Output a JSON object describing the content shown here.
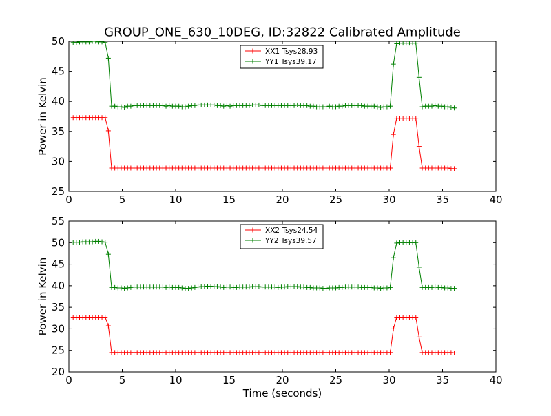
{
  "figure_title": "GROUP_ONE_630_10DEG, ID:32822 Calibrated Amplitude",
  "x_axis_label": "Time (seconds)",
  "chart_data": [
    {
      "type": "line",
      "ylabel": "Power in Kelvin",
      "xlabel": "",
      "xlim": [
        0,
        40
      ],
      "ylim": [
        25,
        50
      ],
      "xticks": [
        0,
        5,
        10,
        15,
        20,
        25,
        30,
        35,
        40
      ],
      "yticks": [
        25,
        30,
        35,
        40,
        45,
        50
      ],
      "legend_position": "top-center",
      "grid": false,
      "marker": "plus",
      "series": [
        {
          "name": "XX1 Tsys28.93",
          "color": "#ff0000",
          "x": [
            0.4,
            0.7,
            1.0,
            1.3,
            1.6,
            1.9,
            2.2,
            2.5,
            2.8,
            3.1,
            3.4,
            3.7,
            4.0,
            4.3,
            4.6,
            4.9,
            5.2,
            5.5,
            5.8,
            6.1,
            6.4,
            6.7,
            7.0,
            7.3,
            7.6,
            7.9,
            8.2,
            8.5,
            8.8,
            9.1,
            9.4,
            9.7,
            10.0,
            10.3,
            10.6,
            10.9,
            11.2,
            11.5,
            11.8,
            12.1,
            12.4,
            12.7,
            13.0,
            13.3,
            13.6,
            13.9,
            14.2,
            14.5,
            14.8,
            15.1,
            15.4,
            15.7,
            16.0,
            16.3,
            16.6,
            16.9,
            17.2,
            17.5,
            17.8,
            18.1,
            18.4,
            18.7,
            19.0,
            19.3,
            19.6,
            19.9,
            20.2,
            20.5,
            20.8,
            21.1,
            21.4,
            21.7,
            22.0,
            22.3,
            22.6,
            22.9,
            23.2,
            23.5,
            23.8,
            24.1,
            24.4,
            24.7,
            25.0,
            25.3,
            25.6,
            25.9,
            26.2,
            26.5,
            26.8,
            27.1,
            27.4,
            27.7,
            28.0,
            28.3,
            28.6,
            28.9,
            29.2,
            29.5,
            29.8,
            30.1,
            30.4,
            30.7,
            31.0,
            31.3,
            31.6,
            31.9,
            32.2,
            32.5,
            32.8,
            33.1,
            33.4,
            33.7,
            34.0,
            34.3,
            34.6,
            34.9,
            35.2,
            35.5,
            35.8,
            36.1
          ],
          "y": [
            37.3,
            37.3,
            37.3,
            37.3,
            37.3,
            37.3,
            37.3,
            37.3,
            37.3,
            37.3,
            37.3,
            35.1,
            28.9,
            28.9,
            28.9,
            28.9,
            28.9,
            28.9,
            28.9,
            28.9,
            28.9,
            28.9,
            28.9,
            28.9,
            28.9,
            28.9,
            28.9,
            28.9,
            28.9,
            28.9,
            28.9,
            28.9,
            28.9,
            28.9,
            28.9,
            28.9,
            28.9,
            28.9,
            28.9,
            28.9,
            28.9,
            28.9,
            28.9,
            28.9,
            28.9,
            28.9,
            28.9,
            28.9,
            28.9,
            28.9,
            28.9,
            28.9,
            28.9,
            28.9,
            28.9,
            28.9,
            28.9,
            28.9,
            28.9,
            28.9,
            28.9,
            28.9,
            28.9,
            28.9,
            28.9,
            28.9,
            28.9,
            28.9,
            28.9,
            28.9,
            28.9,
            28.9,
            28.9,
            28.9,
            28.9,
            28.9,
            28.9,
            28.9,
            28.9,
            28.9,
            28.9,
            28.9,
            28.9,
            28.9,
            28.9,
            28.9,
            28.9,
            28.9,
            28.9,
            28.9,
            28.9,
            28.9,
            28.9,
            28.9,
            28.9,
            28.9,
            28.9,
            28.9,
            28.9,
            28.9,
            34.5,
            37.2,
            37.2,
            37.2,
            37.2,
            37.2,
            37.2,
            37.2,
            32.5,
            28.9,
            28.9,
            28.9,
            28.9,
            28.9,
            28.9,
            28.9,
            28.9,
            28.9,
            28.8,
            28.8
          ]
        },
        {
          "name": "YY1 Tsys39.17",
          "color": "#008000",
          "x": [
            0.4,
            0.7,
            1.0,
            1.3,
            1.6,
            1.9,
            2.2,
            2.5,
            2.8,
            3.1,
            3.4,
            3.7,
            4.0,
            4.3,
            4.6,
            4.9,
            5.2,
            5.5,
            5.8,
            6.1,
            6.4,
            6.7,
            7.0,
            7.3,
            7.6,
            7.9,
            8.2,
            8.5,
            8.8,
            9.1,
            9.4,
            9.7,
            10.0,
            10.3,
            10.6,
            10.9,
            11.2,
            11.5,
            11.8,
            12.1,
            12.4,
            12.7,
            13.0,
            13.3,
            13.6,
            13.9,
            14.2,
            14.5,
            14.8,
            15.1,
            15.4,
            15.7,
            16.0,
            16.3,
            16.6,
            16.9,
            17.2,
            17.5,
            17.8,
            18.1,
            18.4,
            18.7,
            19.0,
            19.3,
            19.6,
            19.9,
            20.2,
            20.5,
            20.8,
            21.1,
            21.4,
            21.7,
            22.0,
            22.3,
            22.6,
            22.9,
            23.2,
            23.5,
            23.8,
            24.1,
            24.4,
            24.7,
            25.0,
            25.3,
            25.6,
            25.9,
            26.2,
            26.5,
            26.8,
            27.1,
            27.4,
            27.7,
            28.0,
            28.3,
            28.6,
            28.9,
            29.2,
            29.5,
            29.8,
            30.1,
            30.4,
            30.7,
            31.0,
            31.3,
            31.6,
            31.9,
            32.2,
            32.5,
            32.8,
            33.1,
            33.4,
            33.7,
            34.0,
            34.3,
            34.6,
            34.9,
            35.2,
            35.5,
            35.8,
            36.1
          ],
          "y": [
            49.8,
            49.8,
            49.9,
            49.9,
            49.9,
            49.9,
            50.0,
            50.0,
            49.9,
            49.9,
            49.8,
            47.2,
            39.2,
            39.2,
            39.1,
            39.1,
            39.0,
            39.2,
            39.2,
            39.3,
            39.3,
            39.3,
            39.3,
            39.3,
            39.3,
            39.3,
            39.3,
            39.3,
            39.3,
            39.2,
            39.3,
            39.2,
            39.2,
            39.2,
            39.1,
            39.1,
            39.2,
            39.3,
            39.3,
            39.4,
            39.4,
            39.4,
            39.4,
            39.4,
            39.4,
            39.3,
            39.3,
            39.2,
            39.3,
            39.2,
            39.3,
            39.3,
            39.3,
            39.3,
            39.3,
            39.3,
            39.4,
            39.4,
            39.4,
            39.3,
            39.3,
            39.3,
            39.3,
            39.3,
            39.3,
            39.3,
            39.3,
            39.3,
            39.3,
            39.3,
            39.4,
            39.3,
            39.3,
            39.3,
            39.2,
            39.2,
            39.1,
            39.1,
            39.1,
            39.1,
            39.2,
            39.1,
            39.1,
            39.2,
            39.2,
            39.3,
            39.3,
            39.3,
            39.3,
            39.3,
            39.3,
            39.2,
            39.2,
            39.2,
            39.2,
            39.1,
            39.0,
            39.1,
            39.1,
            39.2,
            46.2,
            49.6,
            49.7,
            49.7,
            49.7,
            49.7,
            49.7,
            49.7,
            44.0,
            39.1,
            39.2,
            39.2,
            39.2,
            39.3,
            39.2,
            39.2,
            39.1,
            39.1,
            39.0,
            38.9
          ]
        }
      ]
    },
    {
      "type": "line",
      "ylabel": "Power in Kelvin",
      "xlabel": "Time (seconds)",
      "xlim": [
        0,
        40
      ],
      "ylim": [
        20,
        55
      ],
      "xticks": [
        0,
        5,
        10,
        15,
        20,
        25,
        30,
        35,
        40
      ],
      "yticks": [
        20,
        25,
        30,
        35,
        40,
        45,
        50,
        55
      ],
      "legend_position": "top-center",
      "grid": false,
      "marker": "plus",
      "series": [
        {
          "name": "XX2 Tsys24.54",
          "color": "#ff0000",
          "x": [
            0.4,
            0.7,
            1.0,
            1.3,
            1.6,
            1.9,
            2.2,
            2.5,
            2.8,
            3.1,
            3.4,
            3.7,
            4.0,
            4.3,
            4.6,
            4.9,
            5.2,
            5.5,
            5.8,
            6.1,
            6.4,
            6.7,
            7.0,
            7.3,
            7.6,
            7.9,
            8.2,
            8.5,
            8.8,
            9.1,
            9.4,
            9.7,
            10.0,
            10.3,
            10.6,
            10.9,
            11.2,
            11.5,
            11.8,
            12.1,
            12.4,
            12.7,
            13.0,
            13.3,
            13.6,
            13.9,
            14.2,
            14.5,
            14.8,
            15.1,
            15.4,
            15.7,
            16.0,
            16.3,
            16.6,
            16.9,
            17.2,
            17.5,
            17.8,
            18.1,
            18.4,
            18.7,
            19.0,
            19.3,
            19.6,
            19.9,
            20.2,
            20.5,
            20.8,
            21.1,
            21.4,
            21.7,
            22.0,
            22.3,
            22.6,
            22.9,
            23.2,
            23.5,
            23.8,
            24.1,
            24.4,
            24.7,
            25.0,
            25.3,
            25.6,
            25.9,
            26.2,
            26.5,
            26.8,
            27.1,
            27.4,
            27.7,
            28.0,
            28.3,
            28.6,
            28.9,
            29.2,
            29.5,
            29.8,
            30.1,
            30.4,
            30.7,
            31.0,
            31.3,
            31.6,
            31.9,
            32.2,
            32.5,
            32.8,
            33.1,
            33.4,
            33.7,
            34.0,
            34.3,
            34.6,
            34.9,
            35.2,
            35.5,
            35.8,
            36.1
          ],
          "y": [
            32.7,
            32.7,
            32.7,
            32.7,
            32.7,
            32.7,
            32.7,
            32.7,
            32.7,
            32.7,
            32.7,
            30.7,
            24.5,
            24.5,
            24.5,
            24.5,
            24.5,
            24.5,
            24.5,
            24.5,
            24.5,
            24.5,
            24.5,
            24.5,
            24.5,
            24.5,
            24.5,
            24.5,
            24.5,
            24.5,
            24.5,
            24.5,
            24.5,
            24.5,
            24.5,
            24.5,
            24.5,
            24.5,
            24.5,
            24.5,
            24.5,
            24.5,
            24.5,
            24.5,
            24.5,
            24.5,
            24.5,
            24.5,
            24.5,
            24.5,
            24.5,
            24.5,
            24.5,
            24.5,
            24.5,
            24.5,
            24.5,
            24.5,
            24.5,
            24.5,
            24.5,
            24.5,
            24.5,
            24.5,
            24.5,
            24.5,
            24.5,
            24.5,
            24.5,
            24.5,
            24.5,
            24.5,
            24.5,
            24.5,
            24.5,
            24.5,
            24.5,
            24.5,
            24.5,
            24.5,
            24.5,
            24.5,
            24.5,
            24.5,
            24.5,
            24.5,
            24.5,
            24.5,
            24.5,
            24.5,
            24.5,
            24.5,
            24.5,
            24.5,
            24.5,
            24.5,
            24.5,
            24.5,
            24.5,
            24.5,
            30.0,
            32.7,
            32.7,
            32.7,
            32.7,
            32.7,
            32.7,
            32.7,
            28.1,
            24.5,
            24.5,
            24.5,
            24.5,
            24.5,
            24.5,
            24.5,
            24.5,
            24.5,
            24.5,
            24.4
          ]
        },
        {
          "name": "YY2 Tsys39.57",
          "color": "#008000",
          "x": [
            0.4,
            0.7,
            1.0,
            1.3,
            1.6,
            1.9,
            2.2,
            2.5,
            2.8,
            3.1,
            3.4,
            3.7,
            4.0,
            4.3,
            4.6,
            4.9,
            5.2,
            5.5,
            5.8,
            6.1,
            6.4,
            6.7,
            7.0,
            7.3,
            7.6,
            7.9,
            8.2,
            8.5,
            8.8,
            9.1,
            9.4,
            9.7,
            10.0,
            10.3,
            10.6,
            10.9,
            11.2,
            11.5,
            11.8,
            12.1,
            12.4,
            12.7,
            13.0,
            13.3,
            13.6,
            13.9,
            14.2,
            14.5,
            14.8,
            15.1,
            15.4,
            15.7,
            16.0,
            16.3,
            16.6,
            16.9,
            17.2,
            17.5,
            17.8,
            18.1,
            18.4,
            18.7,
            19.0,
            19.3,
            19.6,
            19.9,
            20.2,
            20.5,
            20.8,
            21.1,
            21.4,
            21.7,
            22.0,
            22.3,
            22.6,
            22.9,
            23.2,
            23.5,
            23.8,
            24.1,
            24.4,
            24.7,
            25.0,
            25.3,
            25.6,
            25.9,
            26.2,
            26.5,
            26.8,
            27.1,
            27.4,
            27.7,
            28.0,
            28.3,
            28.6,
            28.9,
            29.2,
            29.5,
            29.8,
            30.1,
            30.4,
            30.7,
            31.0,
            31.3,
            31.6,
            31.9,
            32.2,
            32.5,
            32.8,
            33.1,
            33.4,
            33.7,
            34.0,
            34.3,
            34.6,
            34.9,
            35.2,
            35.5,
            35.8,
            36.1
          ],
          "y": [
            50.1,
            50.1,
            50.1,
            50.2,
            50.2,
            50.2,
            50.2,
            50.3,
            50.3,
            50.2,
            50.1,
            47.3,
            39.6,
            39.6,
            39.5,
            39.5,
            39.4,
            39.5,
            39.6,
            39.7,
            39.7,
            39.7,
            39.7,
            39.7,
            39.7,
            39.7,
            39.7,
            39.7,
            39.7,
            39.6,
            39.7,
            39.6,
            39.6,
            39.6,
            39.5,
            39.4,
            39.4,
            39.5,
            39.6,
            39.7,
            39.8,
            39.8,
            39.9,
            39.9,
            39.8,
            39.8,
            39.7,
            39.6,
            39.7,
            39.7,
            39.6,
            39.6,
            39.7,
            39.7,
            39.7,
            39.7,
            39.8,
            39.8,
            39.8,
            39.7,
            39.7,
            39.7,
            39.7,
            39.7,
            39.6,
            39.7,
            39.7,
            39.8,
            39.8,
            39.8,
            39.8,
            39.7,
            39.7,
            39.6,
            39.6,
            39.5,
            39.5,
            39.5,
            39.4,
            39.4,
            39.5,
            39.5,
            39.5,
            39.6,
            39.6,
            39.7,
            39.7,
            39.7,
            39.7,
            39.7,
            39.6,
            39.6,
            39.6,
            39.6,
            39.5,
            39.5,
            39.4,
            39.5,
            39.5,
            39.6,
            46.5,
            49.9,
            50.0,
            50.0,
            50.0,
            50.0,
            50.0,
            50.0,
            44.3,
            39.6,
            39.6,
            39.6,
            39.6,
            39.7,
            39.6,
            39.6,
            39.5,
            39.5,
            39.4,
            39.4
          ]
        }
      ]
    }
  ]
}
